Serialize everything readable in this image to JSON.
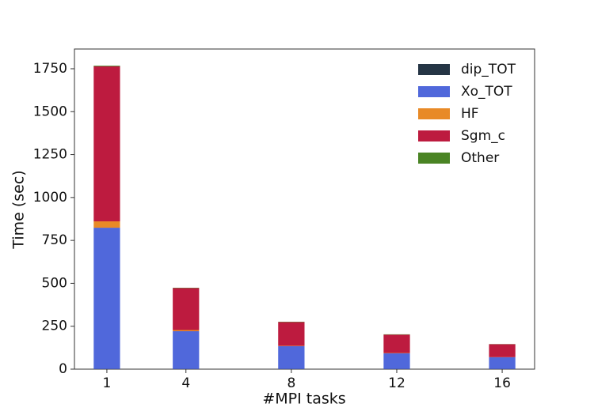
{
  "chart_data": {
    "type": "bar",
    "stacked": true,
    "x_label": "#MPI tasks",
    "y_label": "Time (sec)",
    "x": [
      1,
      4,
      8,
      12,
      16
    ],
    "bar_width": 1,
    "series": [
      {
        "name": "dip_TOT",
        "color": "#253545",
        "values": [
          1,
          1,
          1,
          1,
          1
        ]
      },
      {
        "name": "Xo_TOT",
        "color": "#5068db",
        "values": [
          823,
          220,
          133,
          91,
          68
        ]
      },
      {
        "name": "HF",
        "color": "#e88a27",
        "values": [
          37,
          7,
          2,
          2,
          1
        ]
      },
      {
        "name": "Sgm_c",
        "color": "#bd1b3f",
        "values": [
          903,
          244,
          138,
          107,
          75
        ]
      },
      {
        "name": "Other",
        "color": "#4a8424",
        "values": [
          4,
          2,
          2,
          2,
          1
        ]
      }
    ],
    "xlim": [
      -0.23,
      17.23
    ],
    "xticks": [
      1,
      4,
      8,
      12,
      16
    ],
    "ylim": [
      0,
      1865
    ],
    "yticks": [
      0,
      250,
      500,
      750,
      1000,
      1250,
      1500,
      1750
    ],
    "grid": false,
    "legend": "upper right"
  }
}
